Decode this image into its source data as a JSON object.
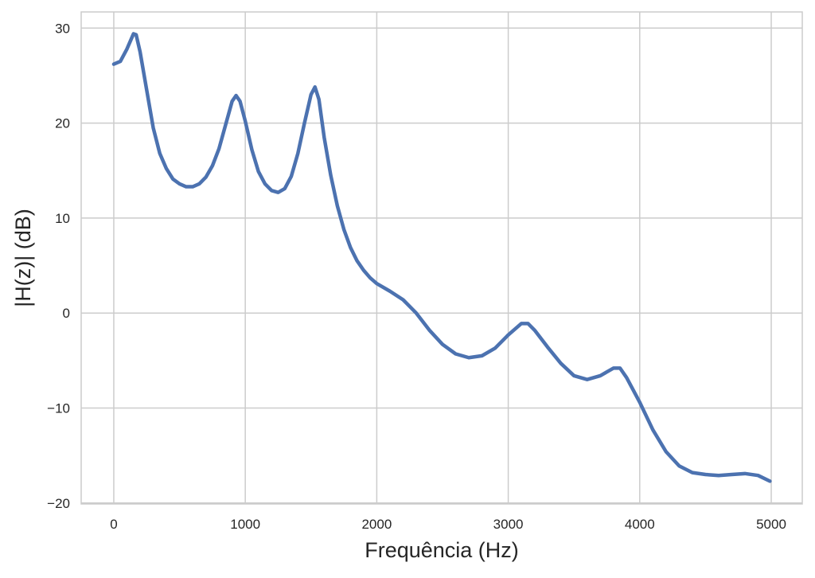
{
  "chart_data": {
    "type": "line",
    "x_label": "Frequência (Hz)",
    "y_label": "|H(z)| (dB)",
    "x": [
      0,
      50,
      100,
      150,
      170,
      200,
      250,
      300,
      350,
      400,
      450,
      500,
      550,
      600,
      650,
      700,
      750,
      800,
      850,
      900,
      930,
      960,
      1000,
      1050,
      1100,
      1150,
      1200,
      1250,
      1300,
      1350,
      1400,
      1450,
      1500,
      1530,
      1560,
      1600,
      1650,
      1700,
      1750,
      1800,
      1850,
      1900,
      1950,
      2000,
      2100,
      2200,
      2300,
      2400,
      2500,
      2600,
      2700,
      2800,
      2900,
      3000,
      3100,
      3150,
      3200,
      3300,
      3400,
      3500,
      3600,
      3700,
      3800,
      3850,
      3900,
      4000,
      4100,
      4200,
      4300,
      4400,
      4500,
      4600,
      4700,
      4800,
      4900,
      4990
    ],
    "series": [
      {
        "color": "#4c72b0",
        "values": [
          26.2,
          26.5,
          27.8,
          29.4,
          29.3,
          27.5,
          23.5,
          19.5,
          16.8,
          15.2,
          14.1,
          13.6,
          13.3,
          13.3,
          13.6,
          14.3,
          15.5,
          17.3,
          19.8,
          22.3,
          22.9,
          22.3,
          20.2,
          17.2,
          14.9,
          13.6,
          12.9,
          12.7,
          13.1,
          14.4,
          16.8,
          20.0,
          23.0,
          23.8,
          22.5,
          18.5,
          14.5,
          11.3,
          8.8,
          6.9,
          5.5,
          4.5,
          3.7,
          3.1,
          2.3,
          1.4,
          0,
          -1.8,
          -3.3,
          -4.3,
          -4.7,
          -4.5,
          -3.7,
          -2.3,
          -1.1,
          -1.1,
          -1.8,
          -3.6,
          -5.3,
          -6.6,
          -7.0,
          -6.6,
          -5.8,
          -5.8,
          -6.8,
          -9.4,
          -12.3,
          -14.6,
          -16.1,
          -16.8,
          -17.0,
          -17.1,
          -17.0,
          -16.9,
          -17.1,
          -17.7
        ]
      }
    ],
    "xlim": [
      -248,
      5236
    ],
    "ylim": [
      -20.1,
      31.7
    ],
    "xticks": [
      0,
      1000,
      2000,
      3000,
      4000,
      5000
    ],
    "yticks": [
      {
        "value": -20,
        "label": "−20"
      },
      {
        "value": -10,
        "label": "−10"
      },
      0,
      10,
      20,
      30
    ],
    "grid": true
  }
}
